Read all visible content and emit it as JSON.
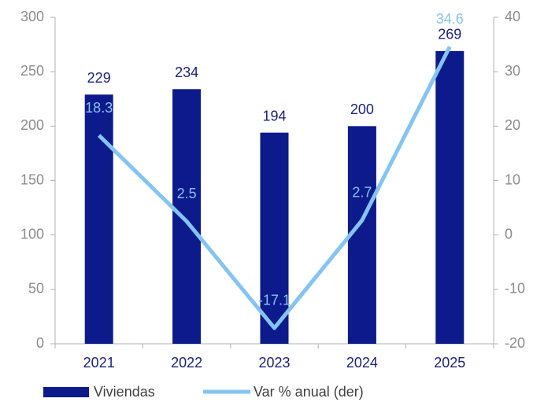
{
  "chart_data": {
    "type": "bar",
    "categories": [
      "2021",
      "2022",
      "2023",
      "2024",
      "2025"
    ],
    "series": [
      {
        "name": "Viviendas",
        "type": "bar",
        "color": "#0d1a8c",
        "values": [
          229,
          234,
          194,
          200,
          269
        ]
      },
      {
        "name": "Var % anual (der)",
        "type": "line",
        "axis": "y2",
        "color": "#85c4f2",
        "values": [
          18.3,
          2.5,
          -17.1,
          2.7,
          34.6
        ]
      }
    ],
    "ylim": [
      0,
      300
    ],
    "yticks": [
      0,
      50,
      100,
      150,
      200,
      250,
      300
    ],
    "y2lim": [
      -20,
      40
    ],
    "y2ticks": [
      -20,
      -10,
      0,
      10,
      20,
      30,
      40
    ],
    "grid": false,
    "legend": "bottom"
  }
}
